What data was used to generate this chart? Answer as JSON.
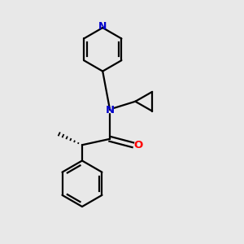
{
  "bg_color": "#e8e8e8",
  "atom_color_N": "#0000cc",
  "atom_color_O": "#ff0000",
  "bond_color": "#000000",
  "figsize": [
    3.0,
    3.0
  ],
  "dpi": 100,
  "xlim": [
    0,
    10
  ],
  "ylim": [
    0,
    10
  ]
}
